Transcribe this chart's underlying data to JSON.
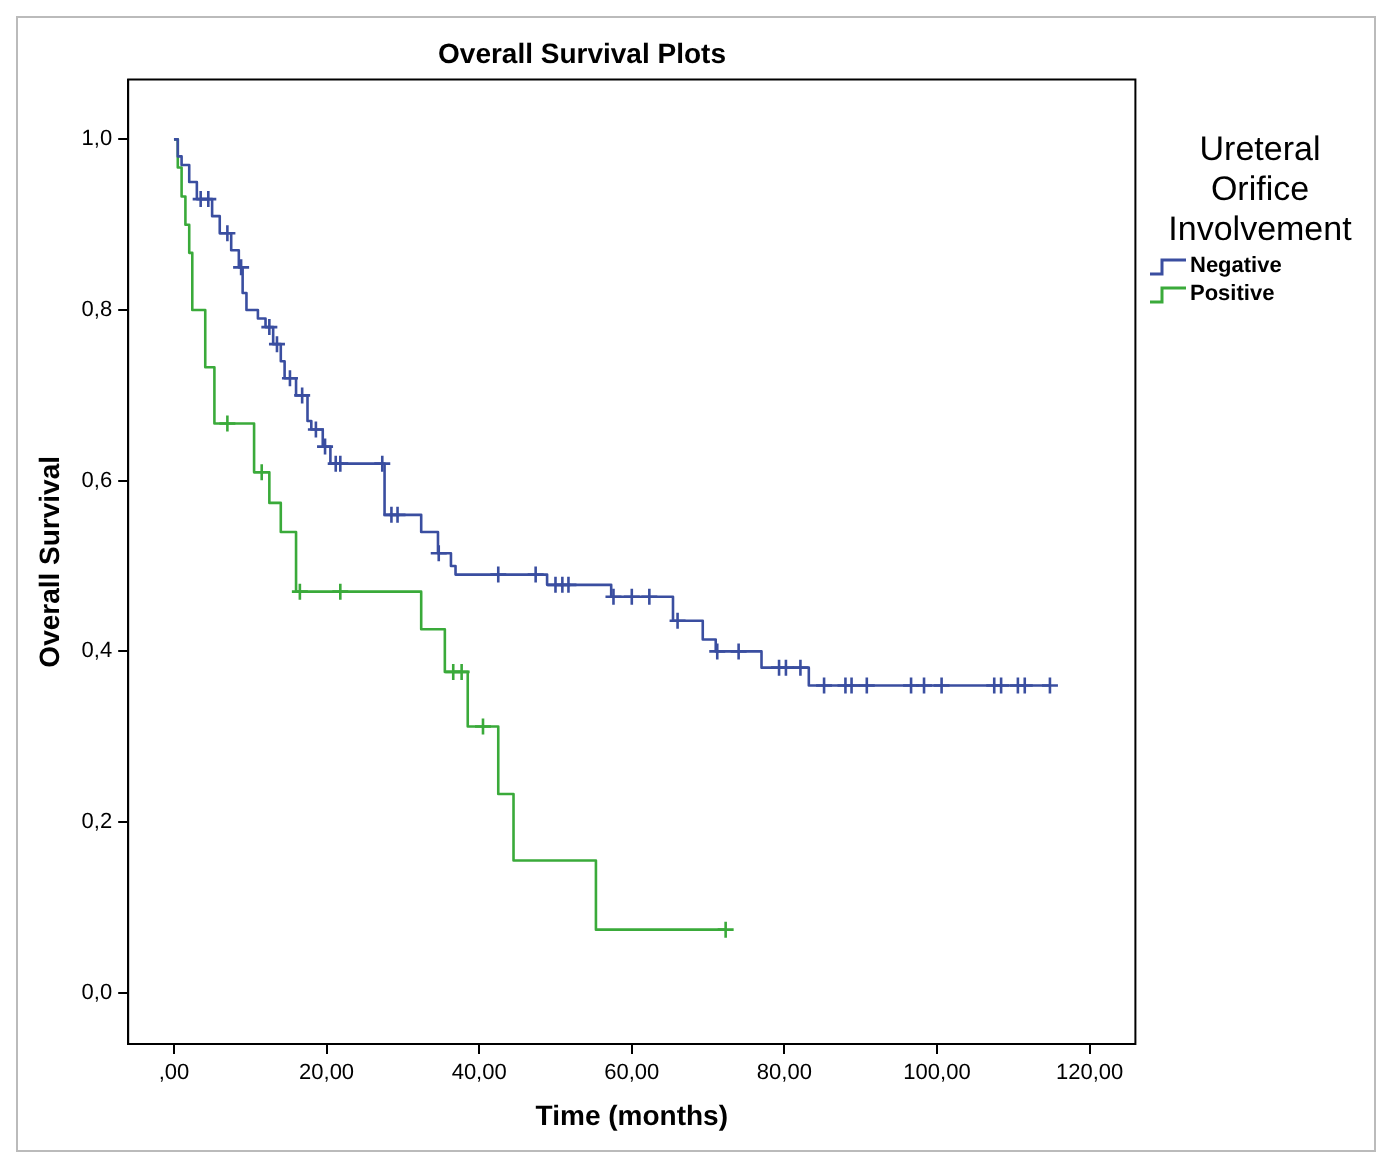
{
  "chart_data": {
    "type": "step",
    "title": "Overall Survival Plots",
    "xlabel": "Time (months)",
    "ylabel": "Overall Survival",
    "legend_title": "Ureteral Orifice Involvement",
    "legend": "right",
    "grid": false,
    "xlim": [
      -6,
      126
    ],
    "ylim": [
      -0.06,
      1.07
    ],
    "xticks": [
      {
        "value": 0,
        "label": ",00"
      },
      {
        "value": 20,
        "label": "20,00"
      },
      {
        "value": 40,
        "label": "40,00"
      },
      {
        "value": 60,
        "label": "60,00"
      },
      {
        "value": 80,
        "label": "80,00"
      },
      {
        "value": 100,
        "label": "100,00"
      },
      {
        "value": 120,
        "label": "120,00"
      }
    ],
    "yticks": [
      {
        "value": 0,
        "label": "0,0"
      },
      {
        "value": 0.2,
        "label": "0,2"
      },
      {
        "value": 0.4,
        "label": "0,4"
      },
      {
        "value": 0.6,
        "label": "0,6"
      },
      {
        "value": 0.8,
        "label": "0,8"
      },
      {
        "value": 1,
        "label": "1,0"
      }
    ],
    "series": [
      {
        "name": "Negative",
        "color": "#3a4ea0",
        "marker": "none",
        "x": [
          0,
          0.5,
          1,
          2,
          3,
          5,
          6,
          7.5,
          8.5,
          9,
          9.5,
          11,
          12,
          13,
          14,
          14.5,
          16,
          17.5,
          18,
          19.5,
          20.5,
          27.6,
          32.4,
          34.6,
          36.3,
          36.9,
          48.9,
          57.3,
          65.4,
          69.3,
          71,
          77,
          83.2,
          114.8
        ],
        "values": [
          1,
          0.98,
          0.97,
          0.95,
          0.93,
          0.91,
          0.89,
          0.87,
          0.85,
          0.82,
          0.8,
          0.79,
          0.78,
          0.76,
          0.74,
          0.72,
          0.7,
          0.67,
          0.66,
          0.64,
          0.62,
          0.56,
          0.54,
          0.515,
          0.5,
          0.49,
          0.478,
          0.464,
          0.436,
          0.414,
          0.4,
          0.381,
          0.36,
          0.36
        ]
      },
      {
        "name": "Positive",
        "color": "#3aaa3a",
        "marker": "none",
        "x": [
          0,
          0.5,
          1,
          1.5,
          2,
          2.4,
          4.1,
          5.3,
          10.5,
          12.5,
          14,
          16,
          32.4,
          35.5,
          38.5,
          42.5,
          44.5,
          55.3,
          72.3
        ],
        "values": [
          1,
          0.967,
          0.933,
          0.9,
          0.867,
          0.8,
          0.733,
          0.667,
          0.61,
          0.574,
          0.54,
          0.47,
          0.426,
          0.376,
          0.312,
          0.233,
          0.155,
          0.074,
          0.074
        ]
      },
      {
        "type": "scatter",
        "color": "#3a4ea0",
        "marker": "cross",
        "x": [
          3.5,
          4.5,
          7,
          8.8,
          12.5,
          13.5,
          15.2,
          16.8,
          18.6,
          19.8,
          21.2,
          21.8,
          27.3,
          28.5,
          29.3,
          34.7,
          42.5,
          47.4,
          50,
          50.9,
          51.7,
          57.6,
          60,
          62.3,
          66,
          71.2,
          74,
          79.3,
          80.2,
          82.1,
          85.2,
          88,
          88.8,
          90.8,
          96.6,
          98.3,
          100.6,
          107.5,
          108.4,
          110.6,
          111.5,
          114.8
        ],
        "values": [
          0.93,
          0.93,
          0.89,
          0.85,
          0.78,
          0.76,
          0.72,
          0.7,
          0.66,
          0.64,
          0.62,
          0.62,
          0.62,
          0.56,
          0.56,
          0.515,
          0.49,
          0.49,
          0.478,
          0.478,
          0.478,
          0.464,
          0.464,
          0.464,
          0.436,
          0.4,
          0.4,
          0.381,
          0.381,
          0.381,
          0.36,
          0.36,
          0.36,
          0.36,
          0.36,
          0.36,
          0.36,
          0.36,
          0.36,
          0.36,
          0.36,
          0.36
        ]
      },
      {
        "type": "scatter",
        "color": "#3aaa3a",
        "marker": "cross",
        "x": [
          7,
          11.5,
          16.5,
          21.8,
          36.6,
          37.7,
          40.5,
          72.3
        ],
        "values": [
          0.667,
          0.61,
          0.47,
          0.47,
          0.376,
          0.376,
          0.312,
          0.074
        ]
      }
    ]
  }
}
